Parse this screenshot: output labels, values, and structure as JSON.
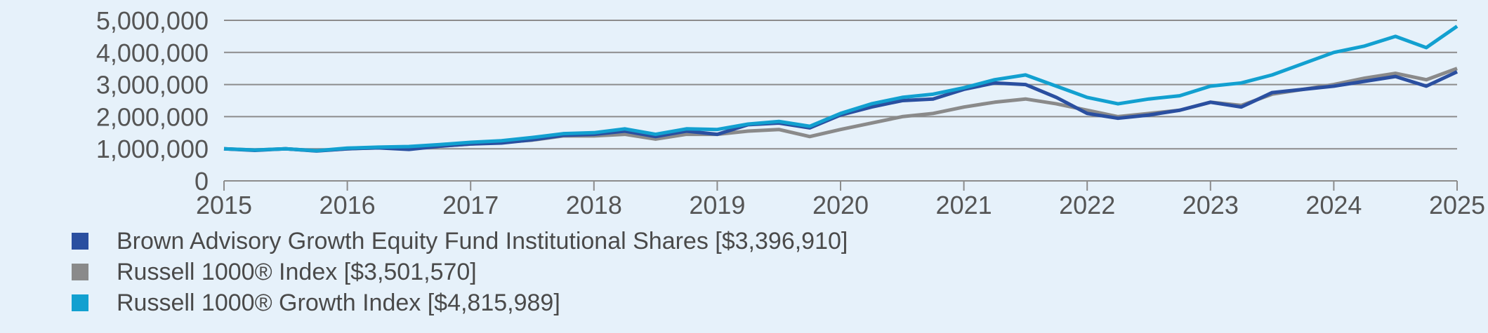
{
  "chart_data": {
    "type": "line",
    "title": "",
    "xlabel": "",
    "ylabel": "",
    "xlim": [
      2015,
      2025
    ],
    "ylim": [
      0,
      5000000
    ],
    "x_ticks": [
      "2015",
      "2016",
      "2017",
      "2018",
      "2019",
      "2020",
      "2021",
      "2022",
      "2023",
      "2024",
      "2025"
    ],
    "y_ticks": [
      "0",
      "1,000,000",
      "2,000,000",
      "3,000,000",
      "4,000,000",
      "5,000,000"
    ],
    "grid": true,
    "legend_position": "bottom-left",
    "x": [
      2015,
      2015.25,
      2015.5,
      2015.75,
      2016,
      2016.25,
      2016.5,
      2016.75,
      2017,
      2017.25,
      2017.5,
      2017.75,
      2018,
      2018.25,
      2018.5,
      2018.75,
      2019,
      2019.25,
      2019.5,
      2019.75,
      2020,
      2020.25,
      2020.5,
      2020.75,
      2021,
      2021.25,
      2021.5,
      2021.75,
      2022,
      2022.25,
      2022.5,
      2022.75,
      2023,
      2023.25,
      2023.5,
      2023.75,
      2024,
      2024.25,
      2024.5,
      2024.75,
      2025
    ],
    "series": [
      {
        "name": "Brown Advisory Growth Equity Fund Institutional Shares [$3,396,910]",
        "color": "#2a4fa0",
        "values": [
          1000000,
          950000,
          1000000,
          930000,
          1000000,
          1030000,
          980000,
          1080000,
          1150000,
          1180000,
          1280000,
          1420000,
          1450000,
          1550000,
          1380000,
          1550000,
          1450000,
          1750000,
          1800000,
          1650000,
          2050000,
          2300000,
          2500000,
          2550000,
          2850000,
          3050000,
          3000000,
          2600000,
          2100000,
          1950000,
          2050000,
          2200000,
          2450000,
          2300000,
          2750000,
          2850000,
          2950000,
          3100000,
          3250000,
          2950000,
          3396910
        ]
      },
      {
        "name": "Russell 1000® Index [$3,501,570]",
        "color": "#8a8a8a",
        "values": [
          1000000,
          960000,
          1000000,
          940000,
          1000000,
          1030000,
          1030000,
          1080000,
          1150000,
          1200000,
          1270000,
          1400000,
          1400000,
          1450000,
          1300000,
          1450000,
          1450000,
          1550000,
          1600000,
          1380000,
          1600000,
          1800000,
          2000000,
          2100000,
          2300000,
          2450000,
          2550000,
          2400000,
          2200000,
          2000000,
          2100000,
          2200000,
          2450000,
          2350000,
          2700000,
          2850000,
          3000000,
          3200000,
          3350000,
          3150000,
          3501570
        ]
      },
      {
        "name": "Russell 1000® Growth Index [$4,815,989]",
        "color": "#12a0d0",
        "values": [
          1000000,
          960000,
          1000000,
          940000,
          1020000,
          1050000,
          1070000,
          1130000,
          1200000,
          1250000,
          1350000,
          1470000,
          1500000,
          1620000,
          1450000,
          1620000,
          1600000,
          1770000,
          1850000,
          1700000,
          2100000,
          2400000,
          2600000,
          2700000,
          2900000,
          3150000,
          3300000,
          2950000,
          2600000,
          2400000,
          2550000,
          2650000,
          2950000,
          3050000,
          3300000,
          3650000,
          4000000,
          4200000,
          4500000,
          4150000,
          4815989
        ]
      }
    ]
  }
}
